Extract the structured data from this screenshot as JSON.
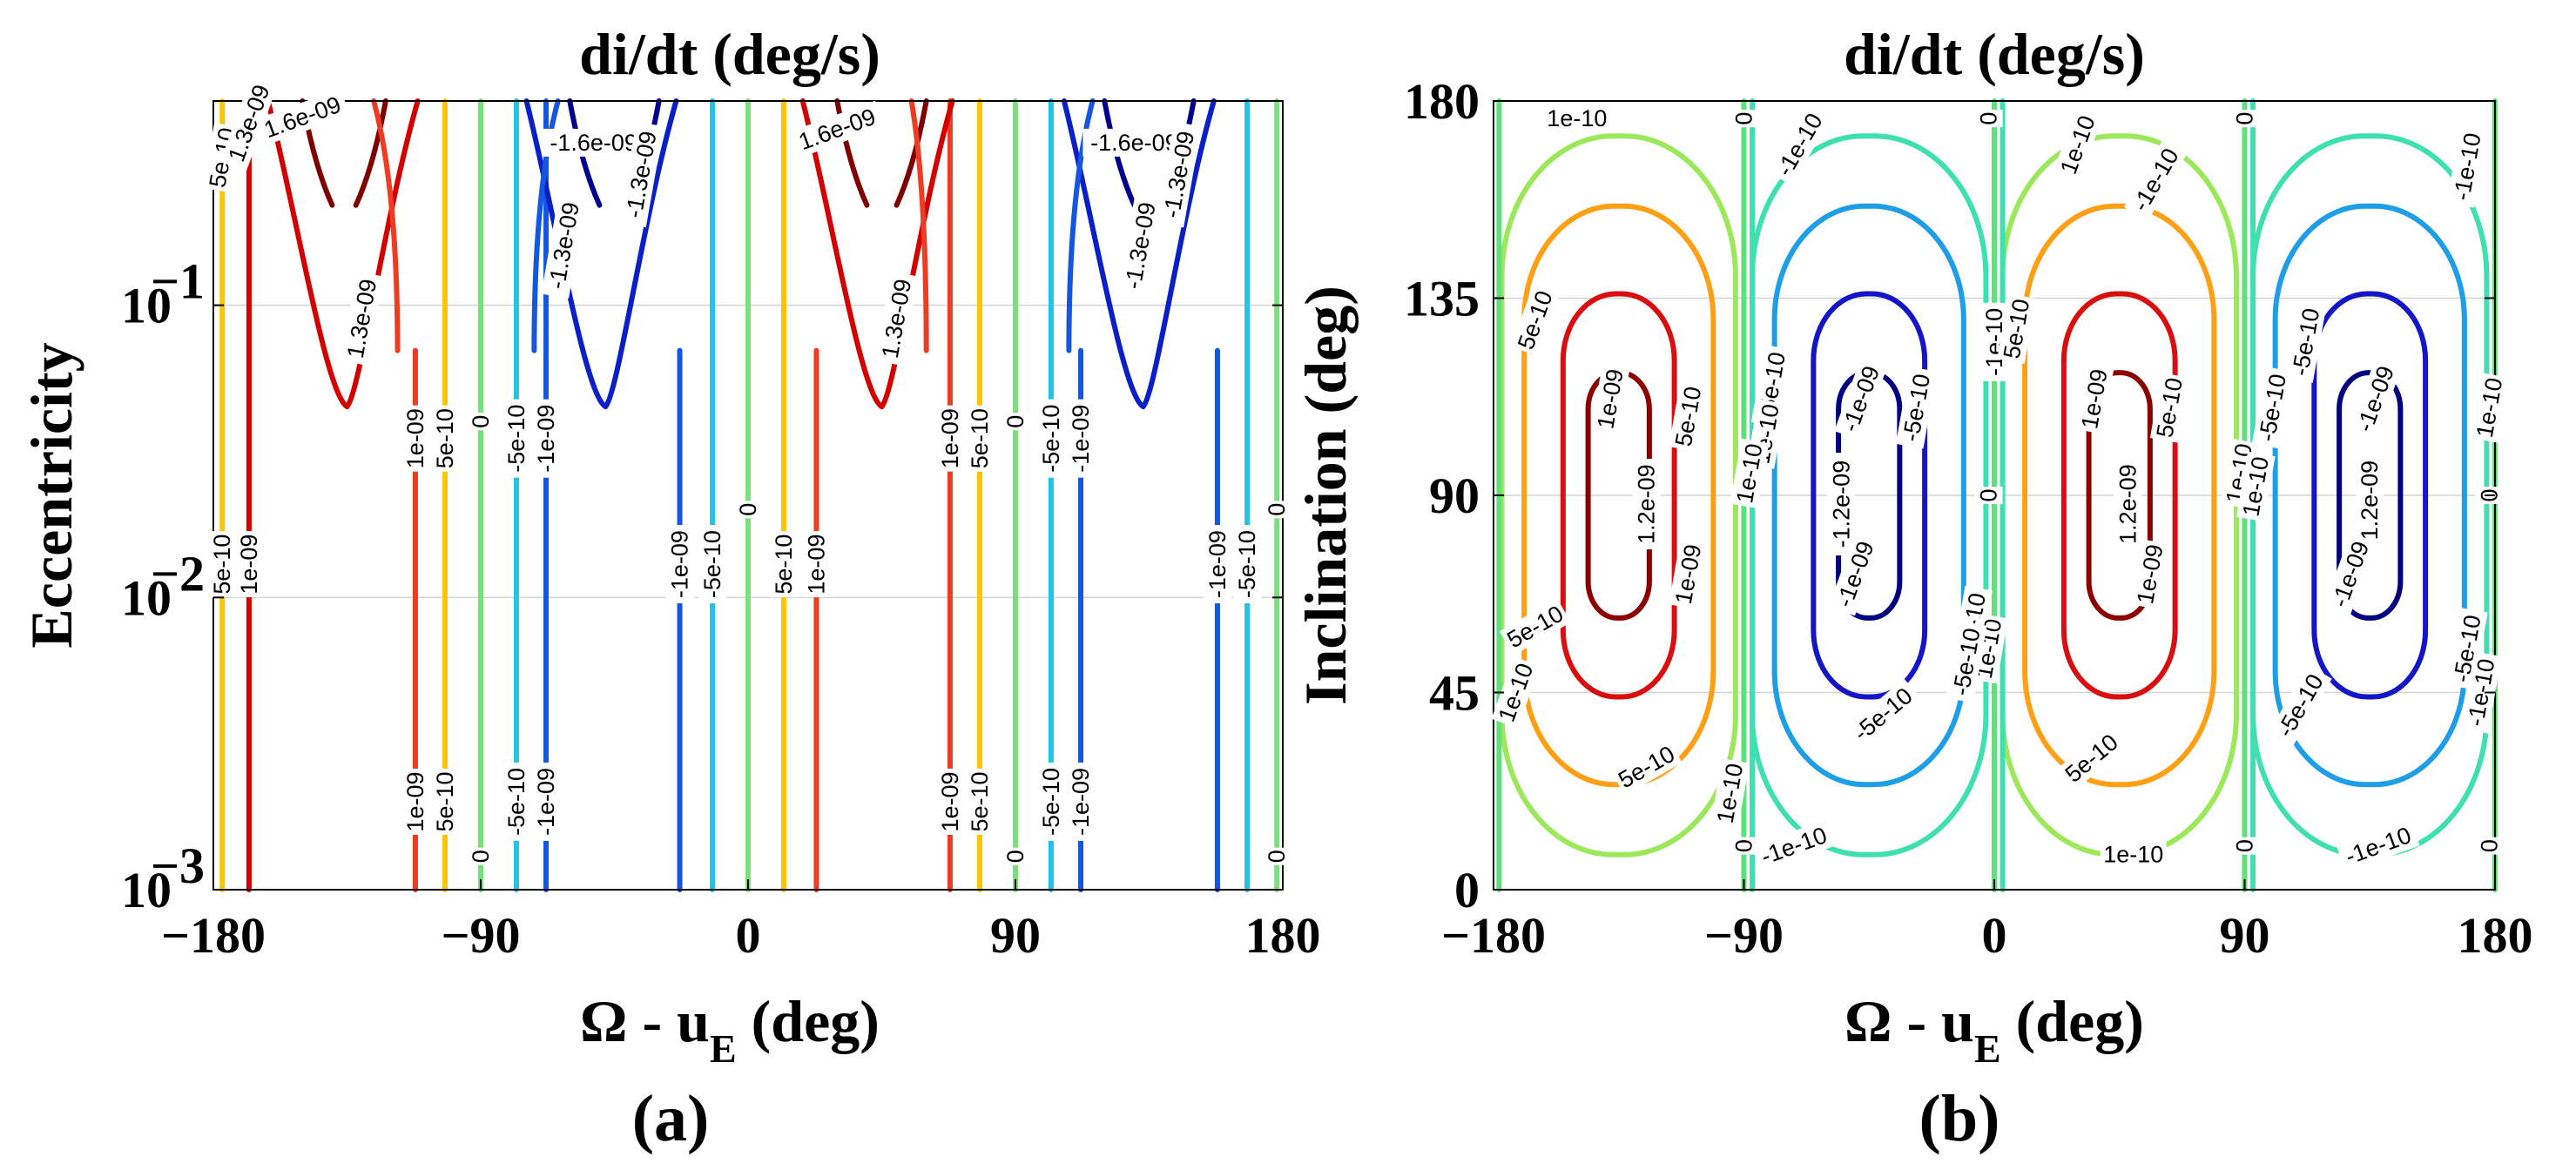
{
  "chart_data": [
    {
      "panel": "a",
      "type": "contour",
      "title": "di/dt (deg/s)",
      "xlabel": "Ω - u",
      "xlabel_subscript": "E",
      "xlabel_unit": "(deg)",
      "ylabel": "Eccentricity",
      "caption": "(a)",
      "xlim": [
        -180,
        180
      ],
      "ylim": [
        0.001,
        0.5
      ],
      "yscale": "log",
      "xticks": [
        -180,
        -90,
        0,
        90,
        180
      ],
      "xtick_labels": [
        "−180",
        "−90",
        "0",
        "90",
        "180"
      ],
      "yticks": [
        0.001,
        0.01,
        0.1
      ],
      "ytick_base": "10",
      "ytick_exponents": [
        "−3",
        "−2",
        "−1"
      ],
      "levels": [
        {
          "label": "1.6e-09",
          "value": 1.6e-09,
          "color": "#7f0000"
        },
        {
          "label": "1.3e-09",
          "value": 1.3e-09,
          "color": "#d40000"
        },
        {
          "label": "1e-09",
          "value": 1e-09,
          "color": "#ee3b22"
        },
        {
          "label": "5e-10",
          "value": 5e-10,
          "color": "#ffc400"
        },
        {
          "label": "0",
          "value": 0,
          "color": "#7ae07a"
        },
        {
          "label": "-5e-10",
          "value": -5e-10,
          "color": "#22c4e6"
        },
        {
          "label": "-1e-09",
          "value": -1e-09,
          "color": "#1456e0"
        },
        {
          "label": "-1.3e-09",
          "value": -1.3e-09,
          "color": "#0a1fc8"
        },
        {
          "label": "-1.6e-09",
          "value": -1.6e-09,
          "color": "#00008f"
        }
      ],
      "contour_x_positions_low_e": {
        "1e-09": [
          -112,
          68
        ],
        "5e-10": [
          -102,
          78
        ],
        "0": [
          -90,
          0,
          90,
          180
        ],
        "-5e-10": [
          -78,
          102
        ],
        "-1e-09": [
          -68,
          112
        ],
        "near_180": [
          -172,
          -168,
          8,
          12
        ]
      },
      "label_texts": [
        "1.6e-09",
        "1.3e-09",
        "1.3e-09",
        "5e-10",
        "1e-09",
        "1e-09",
        "5e-10",
        "0",
        "-5e-10",
        "-1e-09",
        "-1.3e-09",
        "-1.6e-09"
      ]
    },
    {
      "panel": "b",
      "type": "contour",
      "title": "di/dt (deg/s)",
      "xlabel": "Ω - u",
      "xlabel_subscript": "E",
      "xlabel_unit": "(deg)",
      "ylabel": "Inclination (deg)",
      "caption": "(b)",
      "xlim": [
        -180,
        180
      ],
      "ylim": [
        0,
        180
      ],
      "xticks": [
        -180,
        -90,
        0,
        90,
        180
      ],
      "xtick_labels": [
        "−180",
        "−90",
        "0",
        "90",
        "180"
      ],
      "yticks": [
        0,
        45,
        90,
        135,
        180
      ],
      "ytick_labels": [
        "0",
        "45",
        "90",
        "135",
        "180"
      ],
      "levels": [
        {
          "label": "1.2e-09",
          "value": 1.2e-09,
          "color": "#8b0000"
        },
        {
          "label": "1e-09",
          "value": 1e-09,
          "color": "#d90f0f"
        },
        {
          "label": "5e-10",
          "value": 5e-10,
          "color": "#ff9f14"
        },
        {
          "label": "1e-10",
          "value": 1e-10,
          "color": "#9be85a"
        },
        {
          "label": "0",
          "value": 0,
          "color": "#5ee07a"
        },
        {
          "label": "-1e-10",
          "value": -1e-10,
          "color": "#3fe0b0"
        },
        {
          "label": "-5e-10",
          "value": -5e-10,
          "color": "#1f9ee8"
        },
        {
          "label": "-1e-09",
          "value": -1e-09,
          "color": "#1414c8"
        },
        {
          "label": "-1.2e-09",
          "value": -1.2e-09,
          "color": "#000080"
        }
      ],
      "extrema_centers_deg": [
        {
          "x": -135,
          "y": 90,
          "sign": "+"
        },
        {
          "x": -45,
          "y": 90,
          "sign": "-"
        },
        {
          "x": 45,
          "y": 90,
          "sign": "+"
        },
        {
          "x": 135,
          "y": 90,
          "sign": "-"
        }
      ]
    }
  ]
}
